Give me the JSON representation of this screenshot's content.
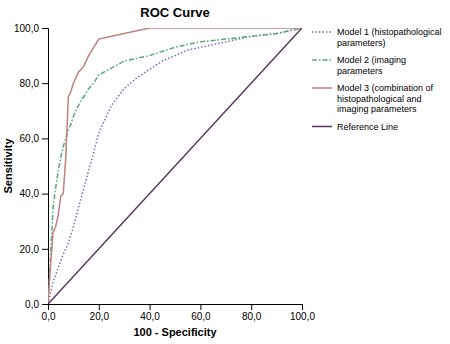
{
  "chart_data": {
    "type": "line",
    "title": "ROC Curve",
    "x_label": "100 - Specificity",
    "y_label": "Sensitivity",
    "xlim": [
      0,
      100
    ],
    "ylim": [
      0,
      100
    ],
    "xticks": [
      {
        "value": 0,
        "label": "0,0"
      },
      {
        "value": 20,
        "label": "20,0"
      },
      {
        "value": 40,
        "label": "40,0"
      },
      {
        "value": 60,
        "label": "60,0"
      },
      {
        "value": 80,
        "label": "80,0"
      },
      {
        "value": 100,
        "label": "100,0"
      }
    ],
    "yticks": [
      {
        "value": 0,
        "label": "0,0"
      },
      {
        "value": 20,
        "label": "20,0"
      },
      {
        "value": 40,
        "label": "40,0"
      },
      {
        "value": 60,
        "label": "60,0"
      },
      {
        "value": 80,
        "label": "80,0"
      },
      {
        "value": 100,
        "label": "100,0"
      }
    ],
    "grid": false,
    "legend": "right",
    "series": [
      {
        "name": "Model 1 (histopathological\nparameters)",
        "color": "#7070bb",
        "line_style": "dotted",
        "x": [
          0,
          2,
          4,
          6,
          8,
          10,
          12,
          15,
          18,
          20,
          25,
          30,
          35,
          40,
          45,
          50,
          55,
          60,
          65,
          70,
          80,
          90,
          100
        ],
        "values": [
          0,
          8,
          13,
          18,
          22,
          28,
          35,
          45,
          55,
          62,
          72,
          78,
          82,
          85,
          88,
          90,
          92,
          93,
          94,
          95,
          97,
          98,
          100
        ]
      },
      {
        "name": "Model 2 (imaging\nparameters",
        "color": "#55aa77",
        "line_style": "dashdot",
        "x": [
          0,
          2,
          3,
          4,
          5,
          6,
          7,
          8,
          9,
          10,
          12,
          14,
          16,
          18,
          20,
          22,
          24,
          26,
          28,
          30,
          35,
          40,
          50,
          60,
          70,
          80,
          90,
          100
        ],
        "values": [
          0,
          35,
          42,
          48,
          53,
          57,
          60,
          63,
          65,
          68,
          72,
          75,
          78,
          80,
          83,
          84,
          85,
          86,
          87,
          88,
          89,
          90,
          93,
          95,
          96,
          97,
          98,
          100
        ]
      },
      {
        "name": "Model 3 (combination of\nhistopathological and\nimaging parameters",
        "color": "#c08080",
        "line_style": "solid",
        "x": [
          0,
          1,
          2,
          3,
          4,
          5,
          6,
          7,
          8,
          9,
          10,
          12,
          14,
          16,
          18,
          20,
          25,
          30,
          40,
          50,
          60,
          70,
          80,
          90,
          100
        ],
        "values": [
          0,
          14,
          26,
          28,
          32,
          39,
          40,
          53,
          75,
          77,
          80,
          84,
          86,
          90,
          93,
          96,
          97,
          98,
          100,
          100,
          100,
          100,
          100,
          100,
          100
        ]
      },
      {
        "name": "Reference Line",
        "color": "#5a3060",
        "line_style": "solid",
        "x": [
          0,
          100
        ],
        "values": [
          0,
          100
        ]
      }
    ]
  }
}
